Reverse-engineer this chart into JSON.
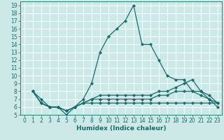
{
  "title": "",
  "xlabel": "Humidex (Indice chaleur)",
  "xlim": [
    -0.5,
    23.5
  ],
  "ylim": [
    5,
    19.5
  ],
  "xticks": [
    0,
    1,
    2,
    3,
    4,
    5,
    6,
    7,
    8,
    9,
    10,
    11,
    12,
    13,
    14,
    15,
    16,
    17,
    18,
    19,
    20,
    21,
    22,
    23
  ],
  "yticks": [
    5,
    6,
    7,
    8,
    9,
    10,
    11,
    12,
    13,
    14,
    15,
    16,
    17,
    18,
    19
  ],
  "bg_color": "#cce9e8",
  "line_color": "#1a6b6b",
  "grid_color": "#ffffff",
  "lines": [
    {
      "x": [
        1,
        2,
        3,
        4,
        5,
        6,
        7,
        8,
        9,
        10,
        11,
        12,
        13,
        14,
        15,
        16,
        17,
        18,
        19,
        20,
        21,
        22,
        23
      ],
      "y": [
        8,
        7,
        6,
        6,
        5,
        6,
        7,
        9,
        13,
        15,
        16,
        17,
        19,
        14,
        14,
        12,
        10,
        9.5,
        9.5,
        8,
        7.5,
        7,
        6
      ]
    },
    {
      "x": [
        1,
        2,
        3,
        4,
        5,
        6,
        7,
        8,
        9,
        10,
        11,
        12,
        13,
        14,
        15,
        16,
        17,
        18,
        19,
        20,
        21,
        22,
        23
      ],
      "y": [
        8,
        6.5,
        6,
        6,
        5.5,
        6,
        6.5,
        7,
        7.5,
        7.5,
        7.5,
        7.5,
        7.5,
        7.5,
        7.5,
        8,
        8,
        8.5,
        9,
        9.5,
        8,
        7.5,
        6.5
      ]
    },
    {
      "x": [
        1,
        2,
        3,
        4,
        5,
        6,
        7,
        8,
        9,
        10,
        11,
        12,
        13,
        14,
        15,
        16,
        17,
        18,
        19,
        20,
        21,
        22,
        23
      ],
      "y": [
        8,
        6.5,
        6,
        6,
        5.5,
        6,
        6.5,
        7,
        7,
        7,
        7,
        7,
        7,
        7,
        7,
        7.5,
        7.5,
        8,
        8,
        8,
        8,
        7,
        6.5
      ]
    },
    {
      "x": [
        1,
        2,
        3,
        4,
        5,
        6,
        7,
        8,
        9,
        10,
        11,
        12,
        13,
        14,
        15,
        16,
        17,
        18,
        19,
        20,
        21,
        22,
        23
      ],
      "y": [
        8,
        6.5,
        6,
        6,
        5.5,
        6,
        6.5,
        6.5,
        6.5,
        6.5,
        6.5,
        6.5,
        6.5,
        6.5,
        6.5,
        6.5,
        6.5,
        6.5,
        6.5,
        6.5,
        6.5,
        6.5,
        6.5
      ]
    }
  ],
  "marker": "D",
  "markersize": 2.2,
  "linewidth": 0.9,
  "tick_fontsize": 5.5,
  "xlabel_fontsize": 6.5
}
